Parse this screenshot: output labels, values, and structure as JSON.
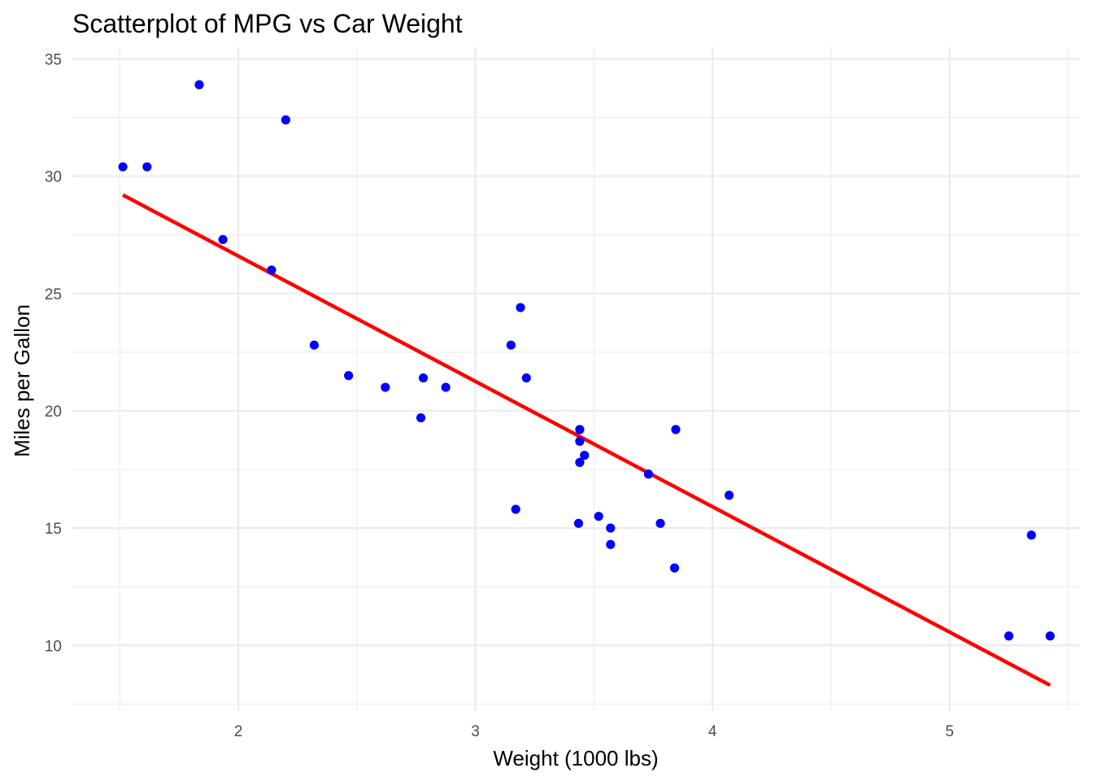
{
  "chart_data": {
    "type": "scatter",
    "title": "Scatterplot of MPG vs Car Weight",
    "xlabel": "Weight (1000 lbs)",
    "ylabel": "Miles per Gallon",
    "xlim": [
      1.3,
      5.55
    ],
    "ylim": [
      7.2,
      35.5
    ],
    "x_ticks": [
      2,
      3,
      4,
      5
    ],
    "y_ticks": [
      10,
      15,
      20,
      25,
      30,
      35
    ],
    "x_minor_ticks": [
      1.5,
      2.5,
      3.5,
      4.5,
      5.5
    ],
    "y_minor_ticks": [
      7.5,
      12.5,
      17.5,
      22.5,
      27.5,
      32.5
    ],
    "grid": true,
    "legend": "none",
    "point_color": "#0000ff",
    "line_color": "#ff0000",
    "points": [
      {
        "x": 1.513,
        "y": 30.4
      },
      {
        "x": 1.615,
        "y": 30.4
      },
      {
        "x": 1.835,
        "y": 33.9
      },
      {
        "x": 1.935,
        "y": 27.3
      },
      {
        "x": 2.14,
        "y": 26.0
      },
      {
        "x": 2.2,
        "y": 32.4
      },
      {
        "x": 2.32,
        "y": 22.8
      },
      {
        "x": 2.465,
        "y": 21.5
      },
      {
        "x": 2.62,
        "y": 21.0
      },
      {
        "x": 2.77,
        "y": 19.7
      },
      {
        "x": 2.78,
        "y": 21.4
      },
      {
        "x": 2.875,
        "y": 21.0
      },
      {
        "x": 3.15,
        "y": 22.8
      },
      {
        "x": 3.17,
        "y": 15.8
      },
      {
        "x": 3.19,
        "y": 24.4
      },
      {
        "x": 3.215,
        "y": 21.4
      },
      {
        "x": 3.435,
        "y": 15.2
      },
      {
        "x": 3.44,
        "y": 18.7
      },
      {
        "x": 3.44,
        "y": 19.2
      },
      {
        "x": 3.44,
        "y": 17.8
      },
      {
        "x": 3.46,
        "y": 18.1
      },
      {
        "x": 3.52,
        "y": 15.5
      },
      {
        "x": 3.57,
        "y": 15.0
      },
      {
        "x": 3.57,
        "y": 14.3
      },
      {
        "x": 3.73,
        "y": 17.3
      },
      {
        "x": 3.78,
        "y": 15.2
      },
      {
        "x": 3.84,
        "y": 13.3
      },
      {
        "x": 3.845,
        "y": 19.2
      },
      {
        "x": 4.07,
        "y": 16.4
      },
      {
        "x": 5.25,
        "y": 10.4
      },
      {
        "x": 5.345,
        "y": 14.7
      },
      {
        "x": 5.424,
        "y": 10.4
      }
    ],
    "fit_line": {
      "x": [
        1.513,
        5.424
      ],
      "y": [
        29.2,
        8.3
      ]
    }
  }
}
